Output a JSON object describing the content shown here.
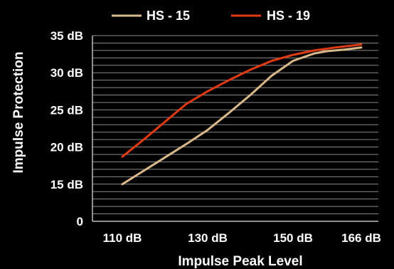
{
  "chart_data": {
    "type": "line",
    "title": "",
    "xlabel": "Impulse Peak Level",
    "ylabel": "Impulse Protection",
    "x_ticks": [
      "110 dB",
      "130 dB",
      "150 dB",
      "166 dB"
    ],
    "x_tick_values": [
      110,
      130,
      150,
      166
    ],
    "y_ticks": [
      "0",
      "15 dB",
      "20 dB",
      "25 dB",
      "30 dB",
      "35 dB"
    ],
    "y_tick_values": [
      10,
      15,
      20,
      25,
      30,
      35
    ],
    "xlim": [
      103,
      170
    ],
    "ylim": [
      10,
      35
    ],
    "grid": true,
    "legend_position": "top-center",
    "series": [
      {
        "name": "HS - 15",
        "color": "#d9b98a",
        "x": [
          110,
          115,
          120,
          125,
          130,
          135,
          140,
          145,
          150,
          155,
          158,
          162,
          166
        ],
        "y": [
          15.0,
          16.8,
          18.6,
          20.4,
          22.3,
          24.6,
          27.0,
          29.6,
          31.6,
          32.6,
          32.9,
          33.1,
          33.4
        ]
      },
      {
        "name": "HS - 19",
        "color": "#e03a12",
        "x": [
          110,
          115,
          120,
          125,
          130,
          135,
          140,
          145,
          150,
          155,
          160,
          166
        ],
        "y": [
          18.7,
          21.0,
          23.4,
          25.8,
          27.5,
          29.0,
          30.4,
          31.6,
          32.4,
          33.0,
          33.4,
          33.8
        ]
      }
    ]
  }
}
